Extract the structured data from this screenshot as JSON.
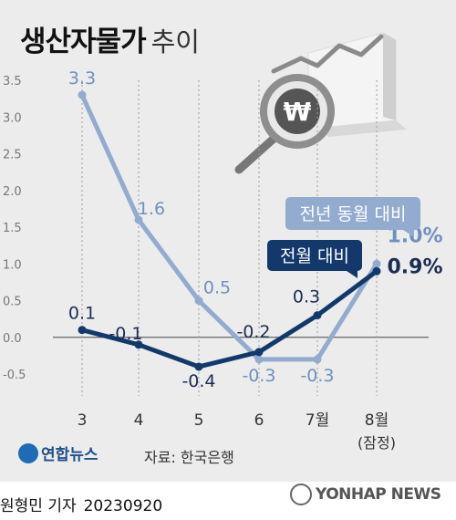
{
  "title": "생산자물가",
  "subtitle": "추이",
  "source": "자료: 한국은행",
  "logo_text": "연합뉴스",
  "reporter": "원형민 기자",
  "date": "20230920",
  "watermark": "YONHAP NEWS",
  "icon": "won-magnifier-chart-icon",
  "colors": {
    "background": "#ececec",
    "mom": "#13386b",
    "yoy": "#93abcf",
    "yoy_label": "#6f90c0",
    "mom_label": "#1c2e55",
    "axis_text": "#333333"
  },
  "chart_data": {
    "type": "line",
    "title": "생산자물가 추이",
    "categories": [
      "3",
      "4",
      "5",
      "6",
      "7월",
      "8월"
    ],
    "category_sublabels": [
      "",
      "",
      "",
      "",
      "",
      "(잠정)"
    ],
    "ylim": [
      -0.5,
      3.5
    ],
    "yticks": [
      "3.5",
      "3.0",
      "2.5",
      "2.0",
      "1.5",
      "1.0",
      "0.5",
      "0.0",
      "-0.5"
    ],
    "series": [
      {
        "name": "전년 동월 대비",
        "values": [
          3.3,
          1.6,
          0.5,
          -0.3,
          -0.3,
          1.0
        ],
        "labels": [
          "3.3",
          "1.6",
          "0.5",
          "-0.3",
          "-0.3",
          "1.0%"
        ]
      },
      {
        "name": "전월 대비",
        "values": [
          0.1,
          -0.1,
          -0.4,
          -0.2,
          0.3,
          0.9
        ],
        "labels": [
          "0.1",
          "-0.1",
          "-0.4",
          "-0.2",
          "0.3",
          "0.9%"
        ]
      }
    ]
  }
}
